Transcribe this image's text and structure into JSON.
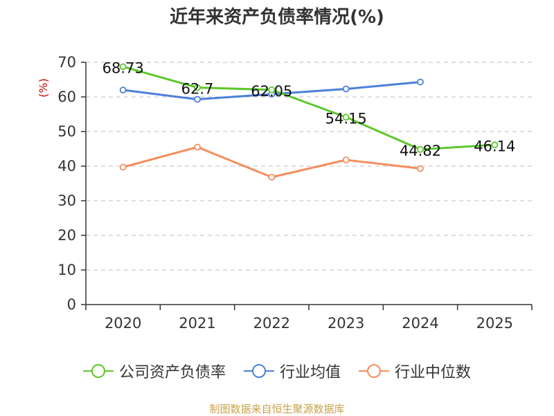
{
  "chart_data": {
    "type": "line",
    "title": "近年来资产负债率情况(%)",
    "ylabel": "(%)",
    "xlabel": "",
    "categories": [
      "2020",
      "2021",
      "2022",
      "2023",
      "2024",
      "2025"
    ],
    "ylim": [
      0,
      70
    ],
    "yticks": [
      "0",
      "10",
      "20",
      "30",
      "40",
      "50",
      "60",
      "70"
    ],
    "grid": true,
    "legend_position": "bottom",
    "series": [
      {
        "name": "公司资产负债率",
        "color": "#5cc72b",
        "values": [
          68.73,
          62.7,
          62.05,
          54.15,
          44.82,
          46.14
        ],
        "labels": [
          "68.73",
          "62.7",
          "62.05",
          "54.15",
          "44.82",
          "46.14"
        ]
      },
      {
        "name": "行业均值",
        "color": "#4a7fdc",
        "values": [
          62.0,
          59.3,
          60.8,
          62.3,
          64.3,
          null
        ]
      },
      {
        "name": "行业中位数",
        "color": "#f58d5d",
        "values": [
          39.7,
          45.5,
          36.8,
          41.8,
          39.3,
          null
        ]
      }
    ]
  },
  "source": {
    "text": "制图数据来自恒生聚源数据库",
    "color": "#c8a24a"
  },
  "colors": {
    "axis": "#333333",
    "grid": "#cccccc",
    "ylabel": "#cc0000"
  }
}
